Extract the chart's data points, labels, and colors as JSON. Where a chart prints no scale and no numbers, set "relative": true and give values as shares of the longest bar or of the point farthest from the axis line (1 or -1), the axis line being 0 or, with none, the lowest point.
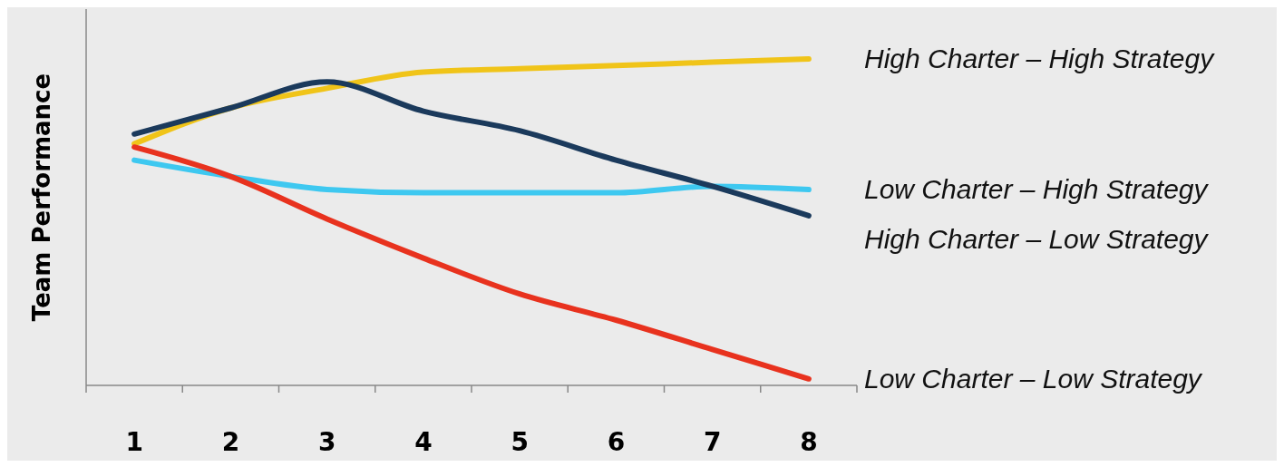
{
  "chart_data": {
    "type": "line",
    "relative": true,
    "ylabel": "Team Performance",
    "categories": [
      "1",
      "2",
      "3",
      "4",
      "5",
      "6",
      "7",
      "8"
    ],
    "marker": "none",
    "line_style": "solid",
    "series": [
      {
        "name": "High Charter – High Strategy",
        "color": "#f0c419",
        "values": [
          0.74,
          0.85,
          0.91,
          0.96,
          0.97,
          0.98,
          0.99,
          1.0
        ]
      },
      {
        "name": "Low Charter – High Strategy",
        "color": "#3ec8f0",
        "values": [
          0.69,
          0.64,
          0.6,
          0.59,
          0.59,
          0.59,
          0.61,
          0.6
        ]
      },
      {
        "name": "High Charter – Low Strategy",
        "color": "#1b3a5c",
        "values": [
          0.77,
          0.85,
          0.93,
          0.84,
          0.78,
          0.69,
          0.61,
          0.52
        ]
      },
      {
        "name": "Low Charter – Low Strategy",
        "color": "#e8321e",
        "values": [
          0.73,
          0.64,
          0.51,
          0.39,
          0.28,
          0.2,
          0.11,
          0.02
        ]
      }
    ]
  }
}
